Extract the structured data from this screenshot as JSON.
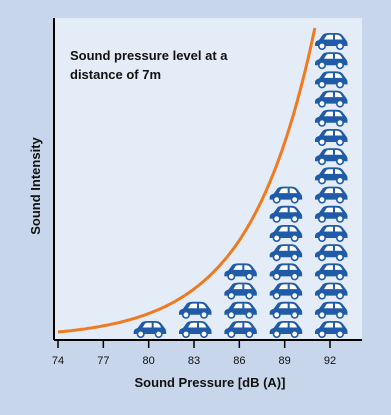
{
  "chart_data": {
    "type": "pictograph",
    "title": "Sound pressure level at a distance of 7m",
    "title_lines": [
      "Sound pressure level at a",
      "distance of 7m"
    ],
    "xlabel": "Sound Pressure [dB (A)]",
    "ylabel": "Sound Intensity",
    "x_ticks": [
      74,
      77,
      80,
      83,
      86,
      89,
      92
    ],
    "xlim": [
      74,
      92
    ],
    "grid": false,
    "categories": [
      80,
      83,
      86,
      89,
      92
    ],
    "values": [
      1,
      2,
      4,
      8,
      16
    ],
    "icon": "car-icon",
    "curve": {
      "name": "sound-intensity-curve",
      "x": [
        74,
        76,
        78,
        80,
        82,
        84,
        86,
        88,
        89,
        90,
        91
      ],
      "relative_intensity": [
        1,
        1.58,
        2.51,
        3.98,
        6.31,
        10,
        15.8,
        25.1,
        31.6,
        39.8,
        50.1
      ]
    },
    "colors": {
      "plot_bg": "#e4ecf7",
      "page_bg": "#c7d6ea",
      "curve": "#f07a20",
      "car": "#1f5ba6",
      "axis": "#000000"
    }
  }
}
